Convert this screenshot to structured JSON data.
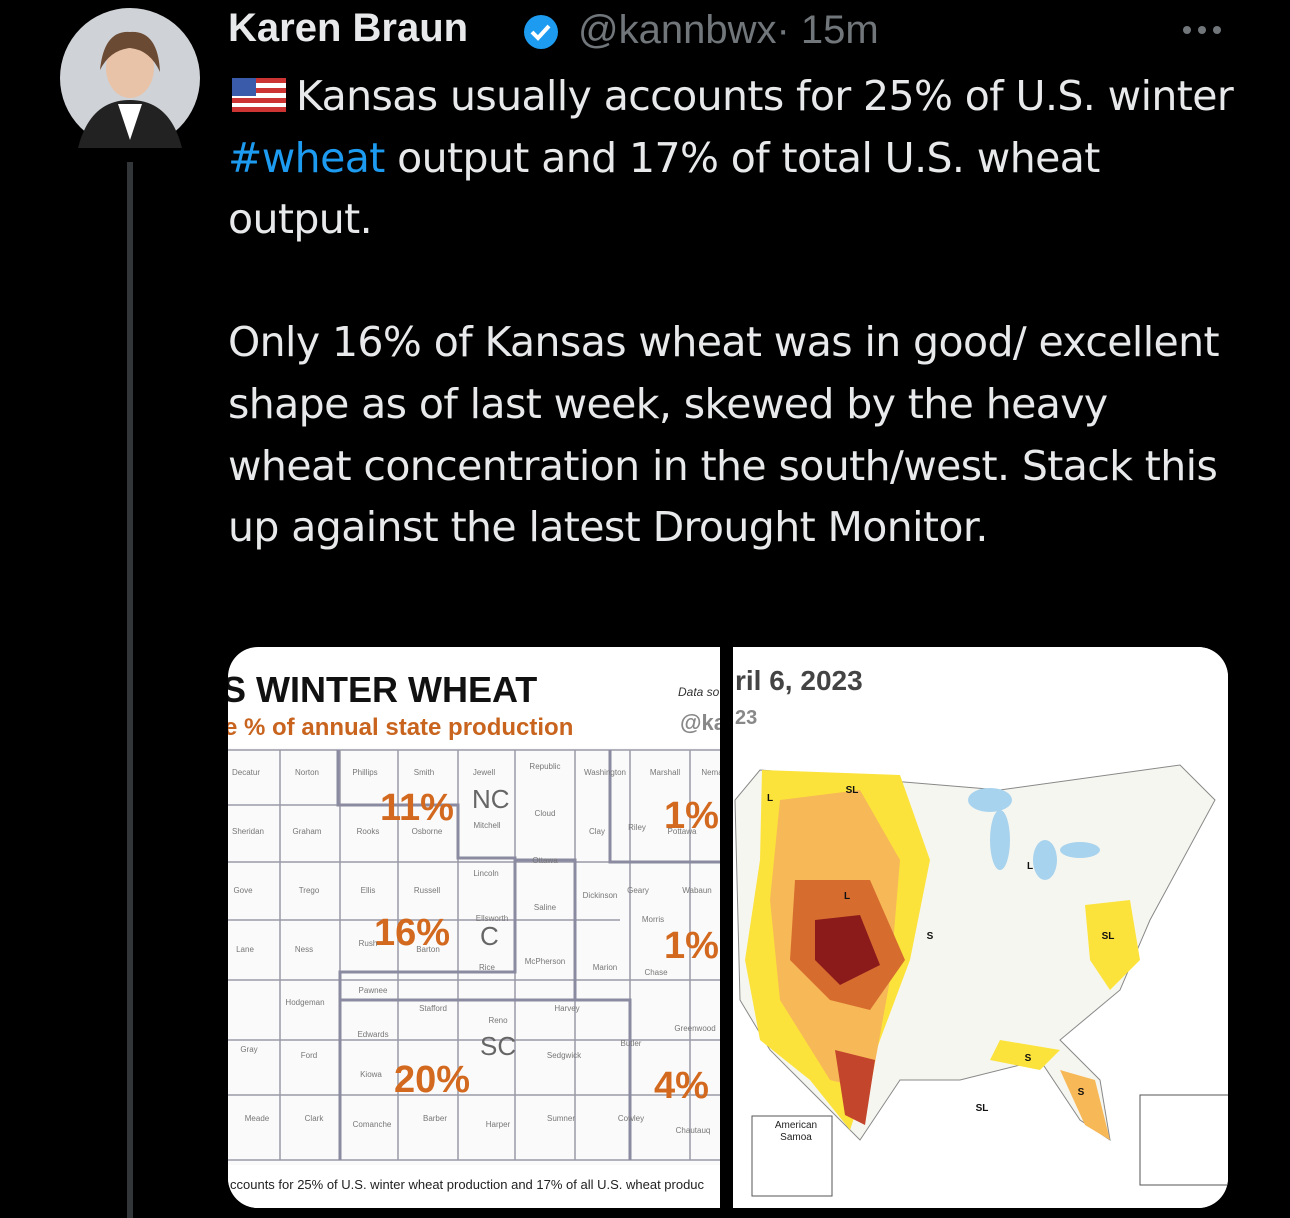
{
  "author": {
    "name": "Karen Braun",
    "handle": "@kannbwx",
    "time": "· 15m"
  },
  "tweet": {
    "p1": [
      "Kansas usually accounts for 25% of U.S. winter ",
      "#wheat",
      " output and 17% of total U.S. wheat output."
    ],
    "p2": "Only 16% of Kansas wheat was in good/ excellent shape as of last week, skewed by the heavy wheat concentration in the south/west. Stack this up against the latest Drought Monitor."
  },
  "left_map": {
    "title": "S WINTER WHEAT",
    "subtitle": "e % of annual state production",
    "source": "Data so",
    "handle": "@ka",
    "footer": "ccounts for 25% of U.S. winter wheat production and 17% of all U.S. wheat produc",
    "regions": [
      "11%",
      "NC",
      "16%",
      "C",
      "20%",
      "SC",
      "1%",
      "1%",
      "4%"
    ],
    "counties": [
      "Decatur",
      "Norton",
      "Phillips",
      "Smith",
      "Jewell",
      "Republic",
      "Washington",
      "Marshall",
      "Nema",
      "Sheridan",
      "Graham",
      "Rooks",
      "Osborne",
      "Mitchell",
      "Cloud",
      "Clay",
      "Riley",
      "Pottawa",
      "Ottawa",
      "Lincoln",
      "Gove",
      "Trego",
      "Ellis",
      "Russell",
      "Dickinson",
      "Geary",
      "Wabaun",
      "Saline",
      "Ellsworth",
      "Morris",
      "Lane",
      "Ness",
      "Rush",
      "Barton",
      "Rice",
      "McPherson",
      "Marion",
      "Chase",
      "Pawnee",
      "Hodgeman",
      "Stafford",
      "Harvey",
      "Reno",
      "Edwards",
      "Gray",
      "Ford",
      "Butler",
      "Greenwood",
      "Sedgwick",
      "Kiowa",
      "Meade",
      "Clark",
      "Comanche",
      "Barber",
      "Harper",
      "Sumner",
      "Cowley",
      "Chautauq"
    ]
  },
  "right_map": {
    "date": "ril 6, 2023",
    "date2": "23",
    "labels": [
      "SL",
      "L",
      "L",
      "L",
      "S",
      "SL",
      "S",
      "S",
      "SL"
    ],
    "inset": "American Samoa"
  }
}
